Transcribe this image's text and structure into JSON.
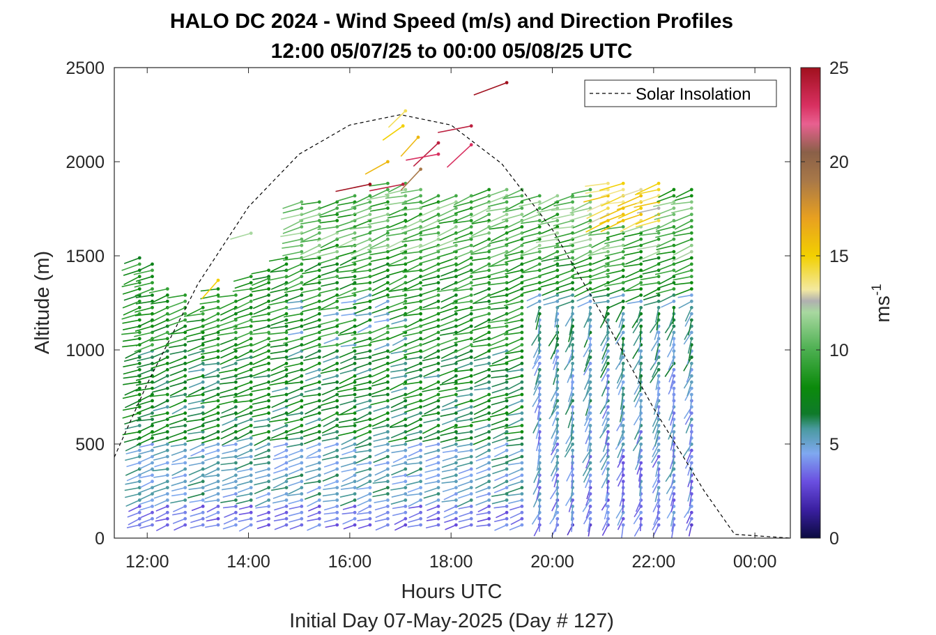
{
  "chart_data": {
    "type": "wind-barb profile",
    "title_line1": "HALO DC 2024 - Wind Speed (m/s) and Direction Profiles",
    "title_line2": "12:00 05/07/25 to 00:00 05/08/25  UTC",
    "xlabel": "Hours UTC",
    "xlabel_sub": "Initial Day 07-May-2025 (Day # 127)",
    "ylabel": "Altitude (m)",
    "xlim_hours": [
      11.35,
      24.7
    ],
    "ylim": [
      0,
      2500
    ],
    "x_ticks": [
      {
        "h": 12,
        "label": "12:00"
      },
      {
        "h": 14,
        "label": "14:00"
      },
      {
        "h": 16,
        "label": "16:00"
      },
      {
        "h": 18,
        "label": "18:00"
      },
      {
        "h": 20,
        "label": "20:00"
      },
      {
        "h": 22,
        "label": "22:00"
      },
      {
        "h": 24,
        "label": "00:00"
      }
    ],
    "y_ticks": [
      0,
      500,
      1000,
      1500,
      2000,
      2500
    ],
    "colorbar": {
      "label": "ms",
      "label_exponent": "-1",
      "range": [
        0,
        25
      ],
      "ticks": [
        0,
        5,
        10,
        15,
        20,
        25
      ],
      "stops": [
        {
          "v": 0,
          "c": "#0b0b40"
        },
        {
          "v": 1.5,
          "c": "#3a1fa0"
        },
        {
          "v": 3.0,
          "c": "#6a4fe0"
        },
        {
          "v": 4.5,
          "c": "#7fa8f0"
        },
        {
          "v": 5.8,
          "c": "#4a9aa0"
        },
        {
          "v": 6.6,
          "c": "#0f7a2a"
        },
        {
          "v": 8.0,
          "c": "#0b8a0b"
        },
        {
          "v": 10.0,
          "c": "#4caf50"
        },
        {
          "v": 12.0,
          "c": "#a8d8a0"
        },
        {
          "v": 12.6,
          "c": "#b0b0b0"
        },
        {
          "v": 13.2,
          "c": "#f3e9a0"
        },
        {
          "v": 15.0,
          "c": "#f2d000"
        },
        {
          "v": 17.0,
          "c": "#e8a020"
        },
        {
          "v": 19.0,
          "c": "#a87848"
        },
        {
          "v": 20.5,
          "c": "#8a6048"
        },
        {
          "v": 22.0,
          "c": "#e86090"
        },
        {
          "v": 23.0,
          "c": "#d83060"
        },
        {
          "v": 25.0,
          "c": "#a0101e"
        }
      ]
    },
    "legend": {
      "label": "Solar Insolation",
      "placement": "top-right"
    },
    "solar_insolation_curve": [
      {
        "h": 11.35,
        "alt": 430
      },
      {
        "h": 12.0,
        "alt": 820
      },
      {
        "h": 13.0,
        "alt": 1350
      },
      {
        "h": 14.0,
        "alt": 1760
      },
      {
        "h": 15.0,
        "alt": 2040
      },
      {
        "h": 16.0,
        "alt": 2195
      },
      {
        "h": 17.0,
        "alt": 2250
      },
      {
        "h": 18.0,
        "alt": 2195
      },
      {
        "h": 19.0,
        "alt": 1990
      },
      {
        "h": 20.0,
        "alt": 1640
      },
      {
        "h": 21.0,
        "alt": 1180
      },
      {
        "h": 22.0,
        "alt": 690
      },
      {
        "h": 23.0,
        "alt": 250
      },
      {
        "h": 23.6,
        "alt": 20
      },
      {
        "h": 24.7,
        "alt": 0
      }
    ],
    "profiles": [
      {
        "h": 11.85,
        "top": 1500
      },
      {
        "h": 12.1,
        "top": 1480
      },
      {
        "h": 12.4,
        "top": 1340
      },
      {
        "h": 12.75,
        "top": 1300
      },
      {
        "h": 13.1,
        "top": 1250
      },
      {
        "h": 13.4,
        "top": 1340
      },
      {
        "h": 13.75,
        "top": 1320
      },
      {
        "h": 14.05,
        "top": 1420
      },
      {
        "h": 14.4,
        "top": 1440
      },
      {
        "h": 14.75,
        "top": 1520
      },
      {
        "h": 15.05,
        "top": 1800
      },
      {
        "h": 15.4,
        "top": 1790
      },
      {
        "h": 15.75,
        "top": 1800
      },
      {
        "h": 16.1,
        "top": 1840
      },
      {
        "h": 16.4,
        "top": 1840
      },
      {
        "h": 16.75,
        "top": 1900
      },
      {
        "h": 17.1,
        "top": 1890
      },
      {
        "h": 17.4,
        "top": 1880
      },
      {
        "h": 17.75,
        "top": 1850
      },
      {
        "h": 18.1,
        "top": 1840
      },
      {
        "h": 18.4,
        "top": 1840
      },
      {
        "h": 18.75,
        "top": 1860
      },
      {
        "h": 19.1,
        "top": 1860
      },
      {
        "h": 19.4,
        "top": 1860
      },
      {
        "h": 19.75,
        "top": 1850
      },
      {
        "h": 20.1,
        "top": 1840
      },
      {
        "h": 20.4,
        "top": 1850
      },
      {
        "h": 20.75,
        "top": 1860
      },
      {
        "h": 21.1,
        "top": 1900
      },
      {
        "h": 21.4,
        "top": 1900
      },
      {
        "h": 21.75,
        "top": 1880
      },
      {
        "h": 22.1,
        "top": 1900
      },
      {
        "h": 22.4,
        "top": 1870
      },
      {
        "h": 22.75,
        "top": 1880
      }
    ],
    "profile_spacing_m": 33,
    "profile_base_m": 70,
    "high_barbs": [
      {
        "h": 19.1,
        "alt": 2420,
        "speed": 25
      },
      {
        "h": 17.1,
        "alt": 2270,
        "speed": 14
      },
      {
        "h": 18.4,
        "alt": 2190,
        "speed": 24
      },
      {
        "h": 17.05,
        "alt": 2190,
        "speed": 15
      },
      {
        "h": 17.35,
        "alt": 2130,
        "speed": 16
      },
      {
        "h": 17.75,
        "alt": 2100,
        "speed": 24
      },
      {
        "h": 18.4,
        "alt": 2090,
        "speed": 23
      },
      {
        "h": 17.75,
        "alt": 2040,
        "speed": 23
      },
      {
        "h": 16.75,
        "alt": 2000,
        "speed": 16
      },
      {
        "h": 17.4,
        "alt": 1960,
        "speed": 19
      },
      {
        "h": 16.4,
        "alt": 1880,
        "speed": 25
      },
      {
        "h": 17.05,
        "alt": 1880,
        "speed": 24
      },
      {
        "h": 14.05,
        "alt": 1620,
        "speed": 12
      },
      {
        "h": 13.4,
        "alt": 1370,
        "speed": 15
      },
      {
        "h": 14.4,
        "alt": 1380,
        "speed": 9
      }
    ]
  }
}
